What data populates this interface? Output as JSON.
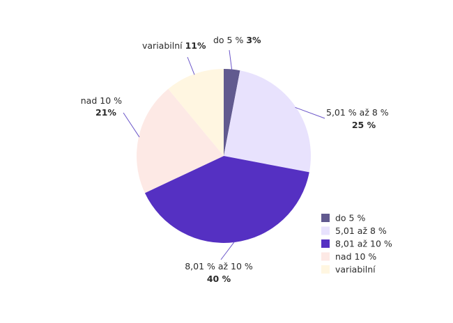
{
  "chart_data": {
    "type": "pie",
    "categories": [
      "do 5 %",
      "5,01 % až 8 %",
      "8,01 % až 10 %",
      "nad 10 %",
      "variabilní"
    ],
    "values": [
      3,
      25,
      40,
      21,
      11
    ],
    "value_labels": [
      "3%",
      "25 %",
      "40 %",
      "21%",
      "11%"
    ],
    "colors": [
      "#615a8f",
      "#e8e2fd",
      "#5530c2",
      "#fde9e5",
      "#fff6e1"
    ],
    "start_angle": "12 o'clock",
    "direction": "clockwise",
    "legend": {
      "position": "bottom-right",
      "entries": [
        "do 5 %",
        "5,01 až 8 %",
        "8,01 až 10 %",
        "nad 10 %",
        "variabilní"
      ]
    }
  }
}
